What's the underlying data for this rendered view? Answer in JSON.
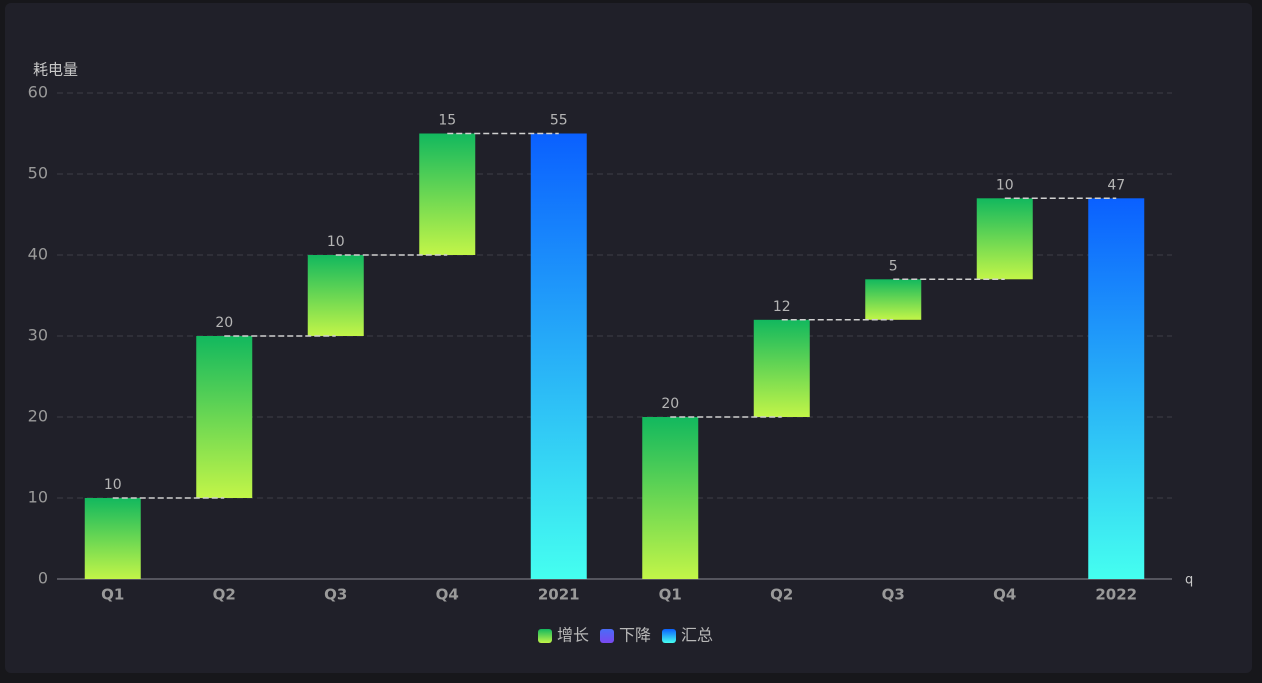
{
  "chart_data": {
    "type": "waterfall",
    "y_label": "耗电量",
    "x_label": "q",
    "categories": [
      "Q1",
      "Q2",
      "Q3",
      "Q4",
      "2021",
      "Q1",
      "Q2",
      "Q3",
      "Q4",
      "2022"
    ],
    "series": [
      {
        "name": "增长",
        "color": [
          "#12b85e",
          "#c2f548"
        ],
        "values": [
          10,
          20,
          10,
          15,
          null,
          20,
          12,
          5,
          10,
          null
        ]
      },
      {
        "name": "下降",
        "color": [
          "#4a6cf7",
          "#7a48f0"
        ],
        "values": [
          null,
          null,
          null,
          null,
          null,
          null,
          null,
          null,
          null,
          null
        ]
      },
      {
        "name": "汇总",
        "color": [
          "#0a60ff",
          "#45fff0"
        ],
        "values": [
          null,
          null,
          null,
          null,
          55,
          null,
          null,
          null,
          null,
          47
        ]
      }
    ],
    "ylim": [
      0,
      60
    ],
    "yticks": [
      0,
      10,
      20,
      30,
      40,
      50,
      60
    ],
    "grid": true
  }
}
